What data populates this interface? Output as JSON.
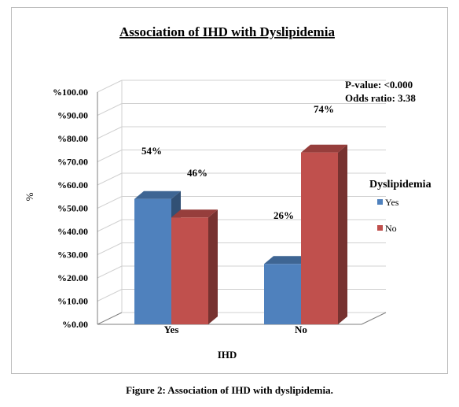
{
  "chart_data": {
    "type": "bar",
    "title": "Association of IHD with Dyslipidemia",
    "xlabel": "IHD",
    "ylabel": "%",
    "categories": [
      "Yes",
      "No"
    ],
    "series": [
      {
        "name": "Yes",
        "values": [
          54,
          26
        ],
        "labels": [
          "54%",
          "26%"
        ],
        "color": "#4f81bd"
      },
      {
        "name": "No",
        "values": [
          46,
          74
        ],
        "labels": [
          "46%",
          "74%"
        ],
        "color": "#c0504d"
      }
    ],
    "ylim": [
      0,
      100
    ],
    "yticks": [
      0,
      10,
      20,
      30,
      40,
      50,
      60,
      70,
      80,
      90,
      100
    ],
    "ytick_labels": [
      "%0.00",
      "%10.00",
      "%20.00",
      "%30.00",
      "%40.00",
      "%50.00",
      "%60.00",
      "%70.00",
      "%80.00",
      "%90.00",
      "%100.00"
    ],
    "legend_title": "Dyslipidemia",
    "legend_position": "right",
    "grid": true,
    "annotations": [
      "P-value: <0.000",
      "Odds ratio: 3.38"
    ]
  },
  "caption": "Figure 2: Association of IHD with dyslipidemia."
}
